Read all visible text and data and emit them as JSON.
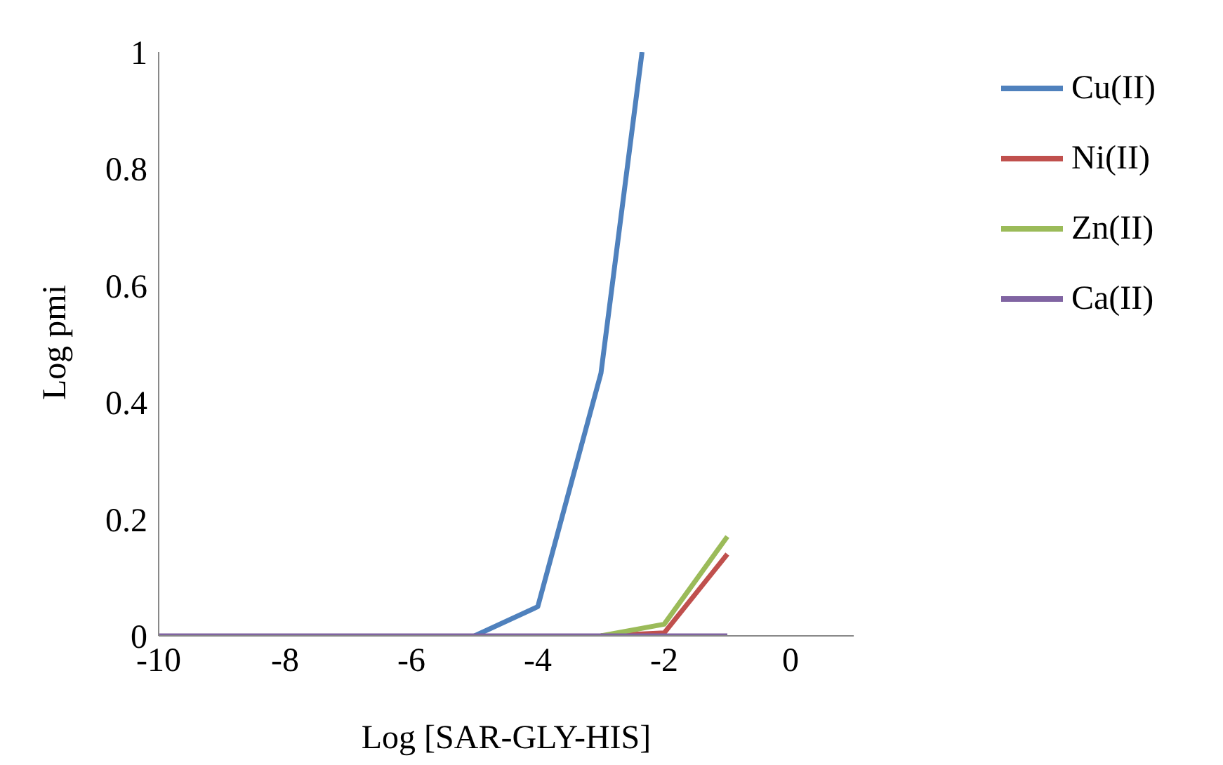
{
  "chart_data": {
    "type": "line",
    "xlabel": "Log [SAR-GLY-HIS]",
    "ylabel": "Log pmi",
    "xlim": [
      -10,
      1
    ],
    "xticks": [
      -10,
      -8,
      -6,
      -4,
      -2,
      0
    ],
    "ylim": [
      0,
      1
    ],
    "yticks": [
      0,
      0.2,
      0.4,
      0.6,
      0.8,
      1
    ],
    "grid": false,
    "legend": "right",
    "marker": "none",
    "line_style": "solid",
    "series": [
      {
        "name": "Cu(II)",
        "color": "#4f81bd",
        "x": [
          -5,
          -4,
          -3,
          -2.35
        ],
        "values": [
          0,
          0.05,
          0.45,
          1
        ]
      },
      {
        "name": "Ni(II)",
        "color": "#c0504d",
        "x": [
          -3,
          -2,
          -1
        ],
        "values": [
          0,
          0.005,
          0.14
        ]
      },
      {
        "name": "Zn(II)",
        "color": "#9bbb59",
        "x": [
          -3,
          -2,
          -1
        ],
        "values": [
          0,
          0.02,
          0.17
        ]
      },
      {
        "name": "Ca(II)",
        "color": "#8064a2",
        "x": [
          -10,
          -9,
          -8,
          -7,
          -6,
          -5,
          -4,
          -3,
          -2,
          -1
        ],
        "values": [
          0,
          0,
          0,
          0,
          0,
          0,
          0,
          0,
          0,
          0
        ]
      }
    ]
  }
}
